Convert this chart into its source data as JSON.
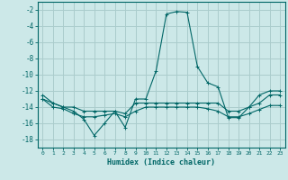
{
  "xlabel": "Humidex (Indice chaleur)",
  "background_color": "#cce8e8",
  "grid_color": "#aacccc",
  "line_color": "#006666",
  "xlim": [
    -0.5,
    23.5
  ],
  "ylim": [
    -19,
    -1
  ],
  "xticks": [
    0,
    1,
    2,
    3,
    4,
    5,
    6,
    7,
    8,
    9,
    10,
    11,
    12,
    13,
    14,
    15,
    16,
    17,
    18,
    19,
    20,
    21,
    22,
    23
  ],
  "yticks": [
    -2,
    -4,
    -6,
    -8,
    -10,
    -12,
    -14,
    -16,
    -18
  ],
  "lines": [
    {
      "x": [
        0,
        1,
        2,
        3,
        4,
        5,
        6,
        7,
        8,
        9,
        10,
        11,
        12,
        13,
        14,
        15,
        16,
        17,
        18,
        19,
        20,
        21,
        22,
        23
      ],
      "y": [
        -12.5,
        -13.5,
        -14,
        -14.5,
        -15.5,
        -17.5,
        -16,
        -14.5,
        -16.5,
        -13,
        -13,
        -9.5,
        -2.5,
        -2.2,
        -2.3,
        -9,
        -11,
        -11.5,
        -15.3,
        -15.3,
        -14,
        -12.5,
        -12,
        -12
      ]
    },
    {
      "x": [
        0,
        1,
        2,
        3,
        4,
        5,
        6,
        7,
        8,
        9,
        10,
        11,
        12,
        13,
        14,
        15,
        16,
        17,
        18,
        19,
        20,
        21,
        22,
        23
      ],
      "y": [
        -13.0,
        -13.5,
        -14.0,
        -14.0,
        -14.5,
        -14.5,
        -14.5,
        -14.5,
        -14.8,
        -13.5,
        -13.5,
        -13.5,
        -13.5,
        -13.5,
        -13.5,
        -13.5,
        -13.5,
        -13.5,
        -14.5,
        -14.5,
        -14.0,
        -13.5,
        -12.5,
        -12.5
      ]
    },
    {
      "x": [
        0,
        1,
        2,
        3,
        4,
        5,
        6,
        7,
        8,
        9,
        10,
        11,
        12,
        13,
        14,
        15,
        16,
        17,
        18,
        19,
        20,
        21,
        22,
        23
      ],
      "y": [
        -13.0,
        -14.0,
        -14.2,
        -14.8,
        -15.2,
        -15.2,
        -15.0,
        -14.8,
        -15.2,
        -14.5,
        -14.0,
        -14.0,
        -14.0,
        -14.0,
        -14.0,
        -14.0,
        -14.2,
        -14.5,
        -15.2,
        -15.2,
        -14.8,
        -14.3,
        -13.8,
        -13.8
      ]
    }
  ]
}
